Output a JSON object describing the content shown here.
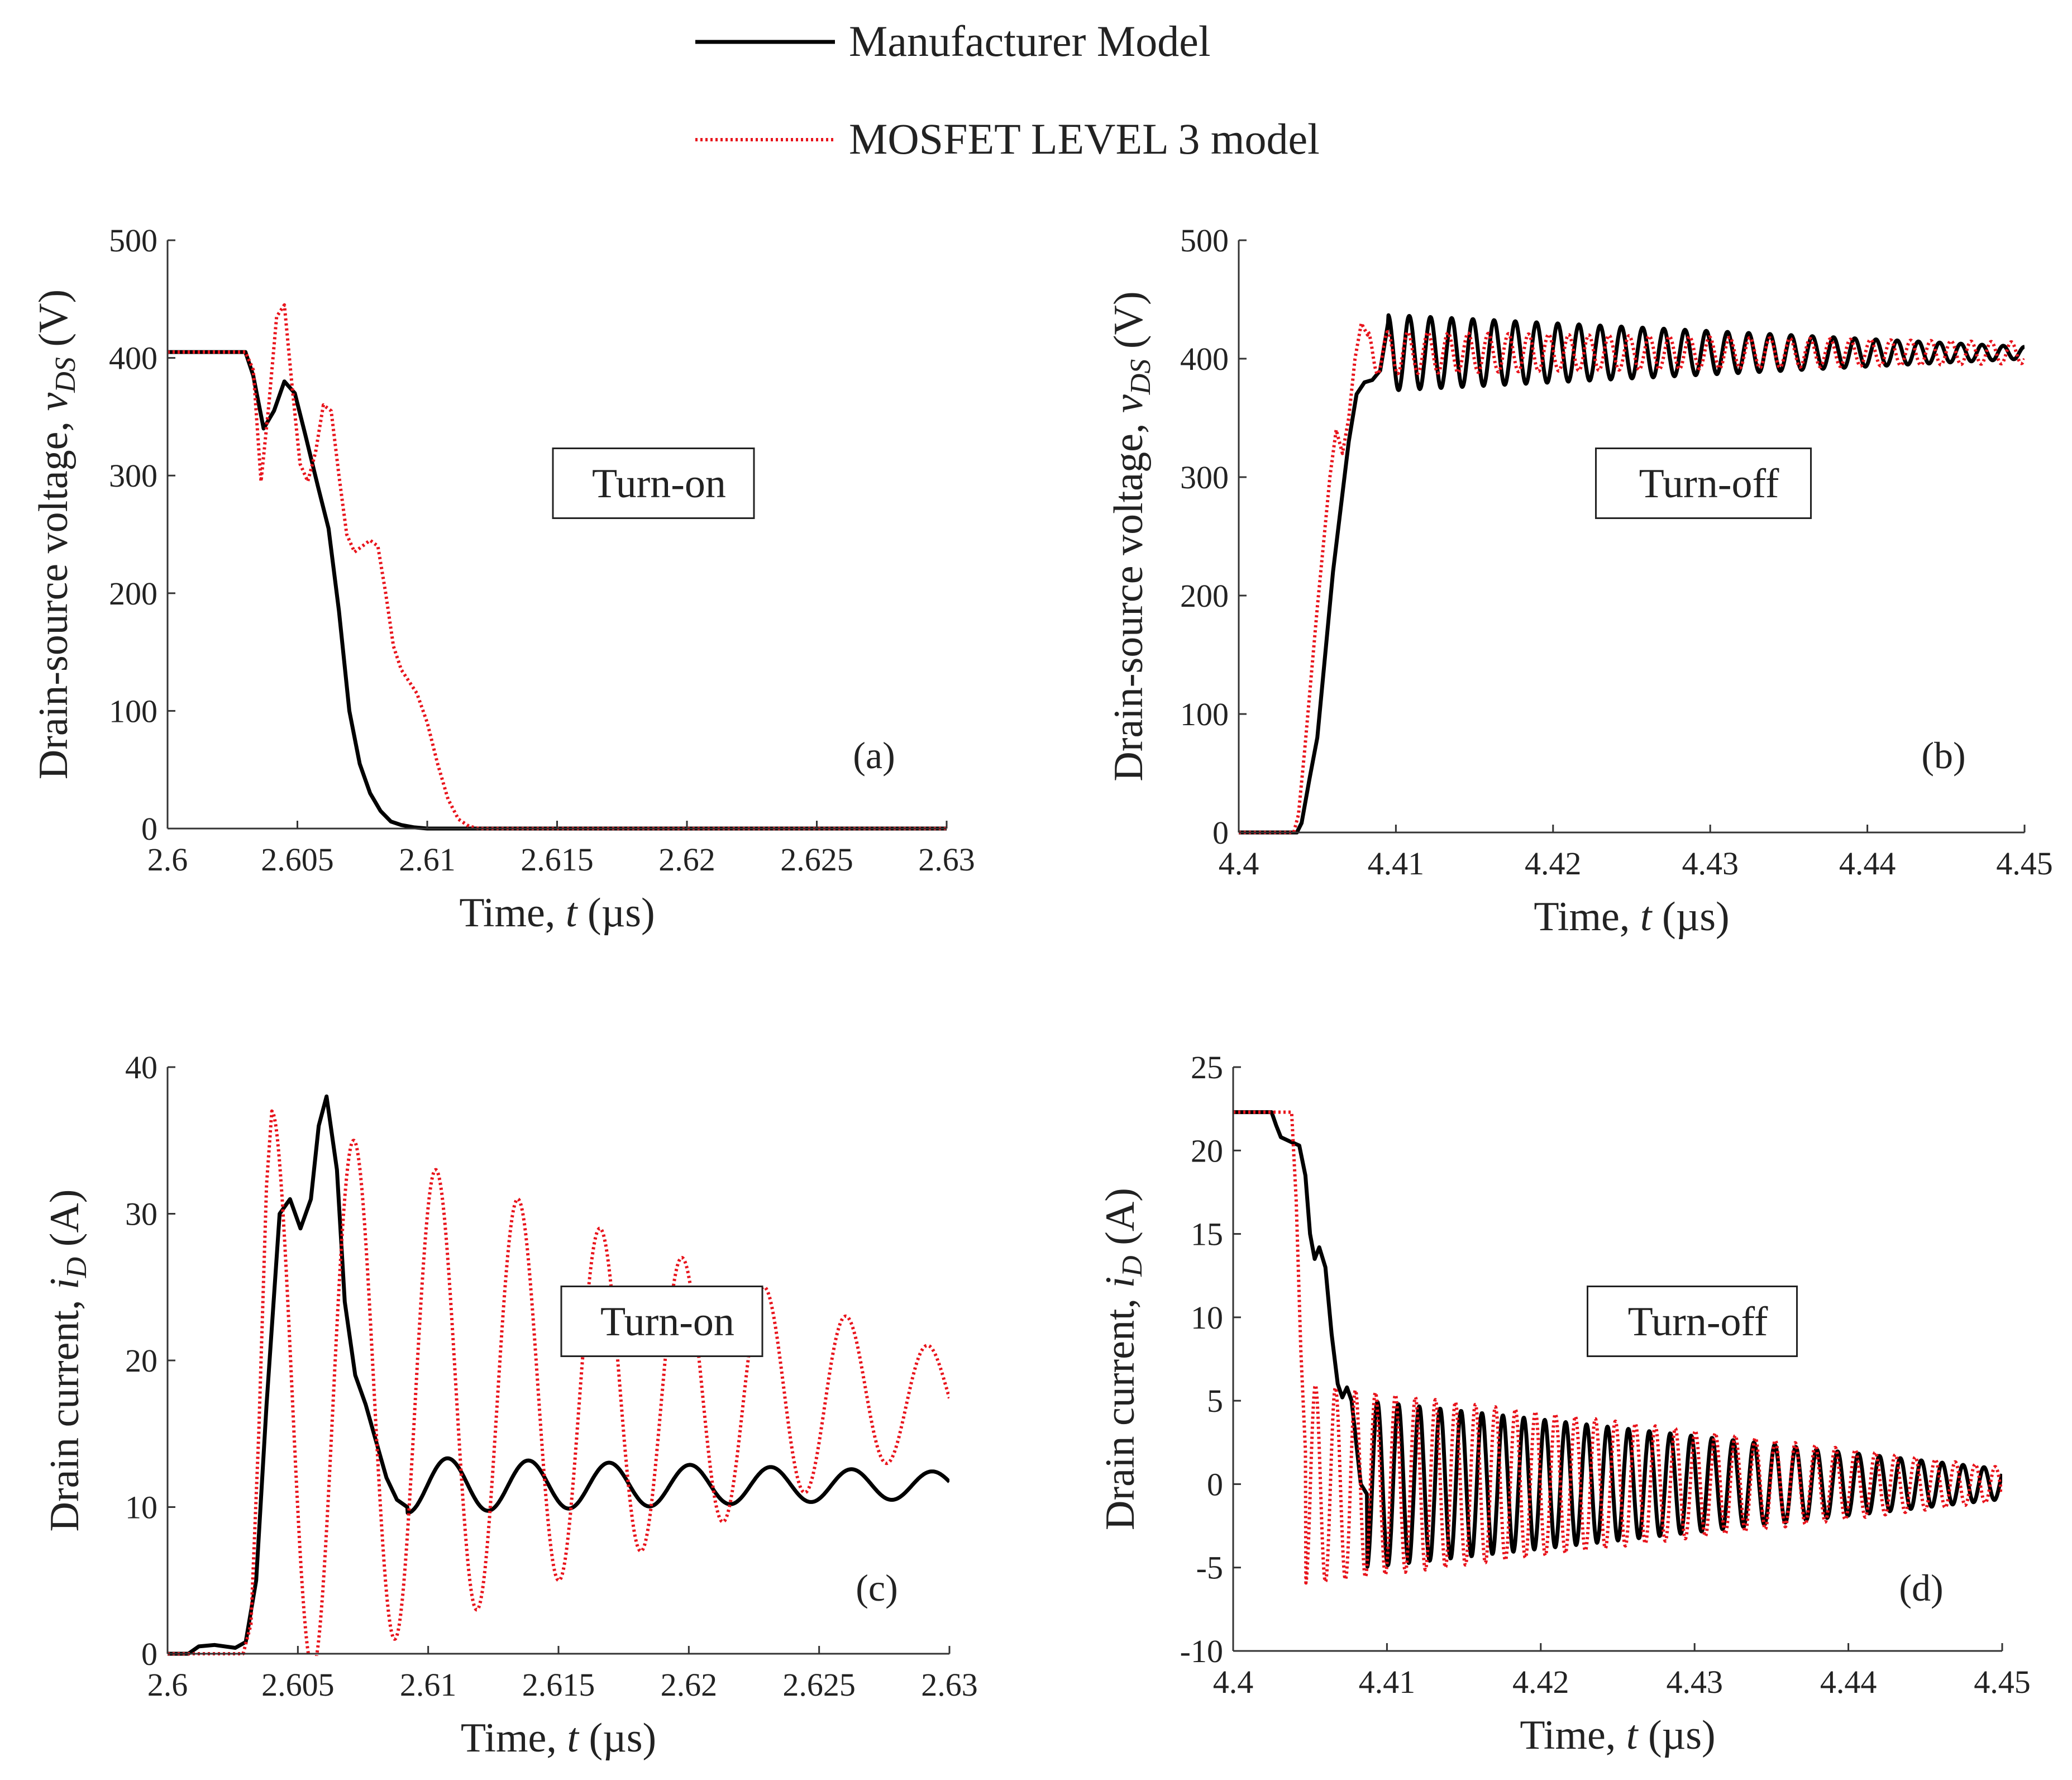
{
  "legend": {
    "items": [
      {
        "label": "Manufacturer Model",
        "color": "#000000",
        "style": "solid"
      },
      {
        "label": "MOSFET LEVEL 3 model",
        "color": "#e8141c",
        "style": "dotted"
      }
    ]
  },
  "chart_data": [
    {
      "id": "a",
      "type": "line",
      "panel_label": "(a)",
      "annotation": "Turn-on",
      "xlabel": "Time, t (µs)",
      "ylabel": "Drain-source voltage, vDS (V)",
      "xlim": [
        2.6,
        2.63
      ],
      "ylim": [
        0,
        500
      ],
      "xticks": [
        "2.6",
        "2.605",
        "2.61",
        "2.615",
        "2.62",
        "2.625",
        "2.63"
      ],
      "yticks": [
        "0",
        "100",
        "200",
        "300",
        "400",
        "500"
      ],
      "series": [
        {
          "name": "Manufacturer Model",
          "x": [
            2.6,
            2.603,
            2.6033,
            2.6037,
            2.6041,
            2.6045,
            2.6049,
            2.6053,
            2.6058,
            2.6062,
            2.6066,
            2.607,
            2.6074,
            2.6078,
            2.6082,
            2.6086,
            2.609,
            2.6095,
            2.61,
            2.6105,
            2.63
          ],
          "values": [
            405,
            405,
            385,
            340,
            355,
            380,
            370,
            335,
            290,
            255,
            185,
            100,
            55,
            30,
            15,
            6,
            3,
            1,
            0,
            0,
            0
          ]
        },
        {
          "name": "MOSFET LEVEL 3 model",
          "x": [
            2.6,
            2.603,
            2.6033,
            2.6036,
            2.6039,
            2.6042,
            2.6045,
            2.6048,
            2.6051,
            2.6054,
            2.6057,
            2.606,
            2.6063,
            2.6066,
            2.6069,
            2.6072,
            2.6075,
            2.6078,
            2.6081,
            2.6084,
            2.6087,
            2.609,
            2.6093,
            2.6096,
            2.61,
            2.6104,
            2.6108,
            2.6112,
            2.6116,
            2.612,
            2.63
          ],
          "values": [
            405,
            405,
            390,
            295,
            360,
            435,
            445,
            375,
            310,
            295,
            320,
            360,
            355,
            300,
            250,
            235,
            240,
            245,
            240,
            200,
            155,
            135,
            125,
            115,
            90,
            55,
            25,
            8,
            2,
            0,
            0
          ]
        }
      ]
    },
    {
      "id": "b",
      "type": "line",
      "panel_label": "(b)",
      "annotation": "Turn-off",
      "xlabel": "Time, t (µs)",
      "ylabel": "Drain-source voltage, vDS (V)",
      "xlim": [
        4.4,
        4.45
      ],
      "ylim": [
        0,
        500
      ],
      "xticks": [
        "4.4",
        "4.41",
        "4.42",
        "4.43",
        "4.44",
        "4.45"
      ],
      "yticks": [
        "0",
        "100",
        "200",
        "300",
        "400",
        "500"
      ],
      "series": [
        {
          "name": "Manufacturer Model",
          "x": [
            4.4,
            4.4037,
            4.404,
            4.4045,
            4.405,
            4.4055,
            4.406,
            4.4065,
            4.407,
            4.4075,
            4.408,
            4.4085,
            4.409,
            4.4095
          ],
          "values": [
            0,
            0,
            8,
            45,
            80,
            150,
            220,
            275,
            330,
            370,
            380,
            382,
            390,
            430
          ],
          "ringing": {
            "start": 4.4095,
            "end": 4.45,
            "center": 405,
            "amp0": 32,
            "amp1": 5,
            "period": 0.00135
          }
        },
        {
          "name": "MOSFET LEVEL 3 model",
          "x": [
            4.4,
            4.4035,
            4.4038,
            4.4042,
            4.4046,
            4.405,
            4.4054,
            4.4058,
            4.4062,
            4.4066,
            4.407,
            4.4074,
            4.4078,
            4.4082
          ],
          "values": [
            0,
            0,
            15,
            70,
            130,
            190,
            245,
            300,
            340,
            320,
            350,
            400,
            430,
            420
          ],
          "ringing": {
            "start": 4.4082,
            "end": 4.45,
            "center": 405,
            "amp0": 18,
            "amp1": 9,
            "period": 0.00128
          }
        }
      ]
    },
    {
      "id": "c",
      "type": "line",
      "panel_label": "(c)",
      "annotation": "Turn-on",
      "xlabel": "Time, t (µs)",
      "ylabel": "Drain current, iD (A)",
      "xlim": [
        2.6,
        2.63
      ],
      "ylim": [
        0,
        40
      ],
      "xticks": [
        "2.6",
        "2.605",
        "2.61",
        "2.615",
        "2.62",
        "2.625",
        "2.63"
      ],
      "yticks": [
        "0",
        "10",
        "20",
        "30",
        "40"
      ],
      "series": [
        {
          "name": "Manufacturer Model",
          "x": [
            2.6,
            2.6008,
            2.6012,
            2.6018,
            2.6026,
            2.603,
            2.6034,
            2.6038,
            2.6043,
            2.6047,
            2.6051,
            2.6055,
            2.6058,
            2.6061,
            2.6065,
            2.6068,
            2.6072,
            2.6076,
            2.608,
            2.6084,
            2.6088,
            2.6092
          ],
          "values": [
            0,
            0,
            0.5,
            0.6,
            0.4,
            0.8,
            5,
            17,
            30,
            31,
            29,
            31,
            36,
            38,
            33,
            24,
            19,
            17,
            14.5,
            12,
            10.5,
            10
          ],
          "ringing": {
            "start": 2.6092,
            "end": 2.63,
            "center": 11.5,
            "amp0": -1.9,
            "amp1": -0.9,
            "period": 0.0031
          }
        },
        {
          "name": "MOSFET LEVEL 3 model",
          "x": [
            2.6,
            2.6029,
            2.6032,
            2.6035,
            2.6038,
            2.604
          ],
          "values": [
            0,
            0,
            2,
            15,
            32,
            37
          ],
          "ringing": {
            "start": 2.604,
            "end": 2.63,
            "center": 17.5,
            "amp0": 19.5,
            "amp1": 3.0,
            "period": 0.00315
          }
        }
      ]
    },
    {
      "id": "d",
      "type": "line",
      "panel_label": "(d)",
      "annotation": "Turn-off",
      "xlabel": "Time, t (µs)",
      "ylabel": "Drain current, iD (A)",
      "xlim": [
        4.4,
        4.45
      ],
      "ylim": [
        -10,
        25
      ],
      "xticks": [
        "4.4",
        "4.41",
        "4.42",
        "4.43",
        "4.44",
        "4.45"
      ],
      "yticks": [
        "-10",
        "-5",
        "0",
        "5",
        "10",
        "15",
        "20",
        "25"
      ],
      "series": [
        {
          "name": "Manufacturer Model",
          "x": [
            4.4,
            4.4025,
            4.4028,
            4.4031,
            4.4038,
            4.4043,
            4.4047,
            4.405,
            4.4053,
            4.4056,
            4.406,
            4.4064,
            4.4068,
            4.4071,
            4.4074,
            4.4077,
            4.408,
            4.4083,
            4.4087
          ],
          "values": [
            22.3,
            22.3,
            21.5,
            20.8,
            20.5,
            20.3,
            18.5,
            15,
            13.5,
            14.2,
            13,
            9,
            6,
            5.2,
            5.8,
            5,
            2.5,
            0,
            -0.6
          ],
          "ringing": {
            "start": 4.4087,
            "end": 4.45,
            "center": 0,
            "amp0": -5.0,
            "amp1": -0.9,
            "period": 0.00136
          }
        },
        {
          "name": "MOSFET LEVEL 3 model",
          "x": [
            4.4,
            4.4038,
            4.4041,
            4.4044,
            4.4047
          ],
          "values": [
            22.3,
            22.3,
            17,
            8,
            2
          ],
          "ringing": {
            "start": 4.4047,
            "end": 4.45,
            "center": 0,
            "amp0": -6.0,
            "amp1": -1.0,
            "period": 0.0013
          }
        }
      ]
    }
  ]
}
